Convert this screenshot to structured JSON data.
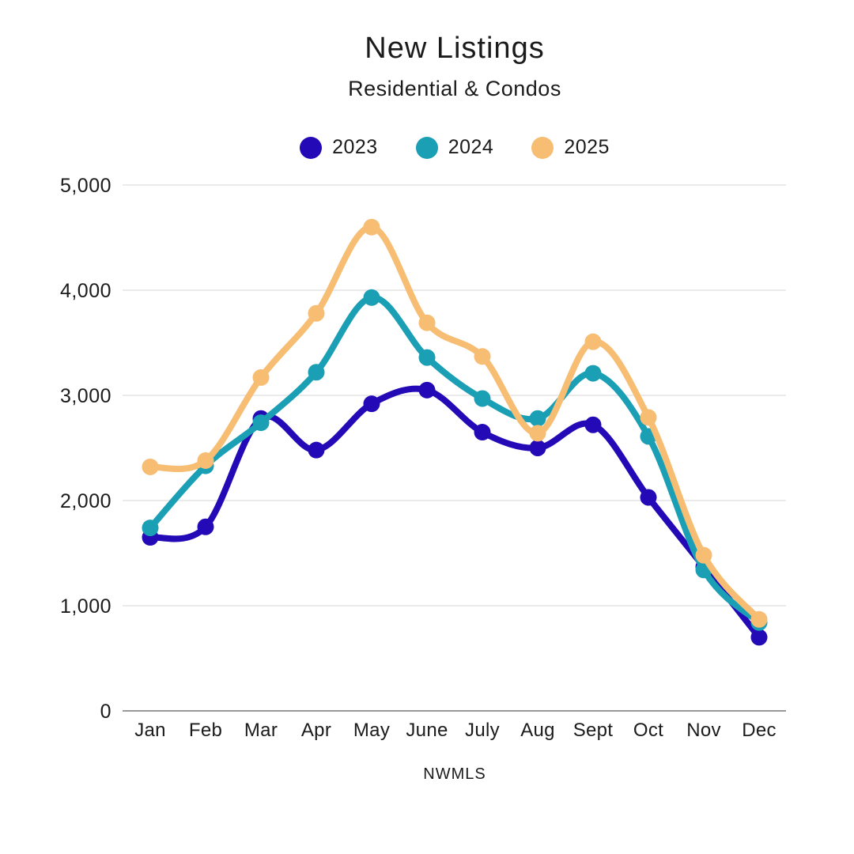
{
  "header": {
    "title": "New Listings",
    "subtitle": "Residential & Condos"
  },
  "footer": {
    "source": "NWMLS"
  },
  "chart_data": {
    "type": "line",
    "title": "New Listings",
    "subtitle": "Residential & Condos",
    "xlabel": "NWMLS",
    "ylabel": "",
    "categories": [
      "Jan",
      "Feb",
      "Mar",
      "Apr",
      "May",
      "June",
      "July",
      "Aug",
      "Sept",
      "Oct",
      "Nov",
      "Dec"
    ],
    "series": [
      {
        "name": "2023",
        "color": "#240ab7",
        "values": [
          1650,
          1750,
          2780,
          2480,
          2920,
          3050,
          2650,
          2500,
          2720,
          2030,
          1370,
          700
        ]
      },
      {
        "name": "2024",
        "color": "#1a9fb4",
        "values": [
          1740,
          2330,
          2740,
          3220,
          3930,
          3360,
          2970,
          2780,
          3210,
          2610,
          1340,
          840
        ]
      },
      {
        "name": "2025",
        "color": "#f6bd73",
        "values": [
          2320,
          2380,
          3170,
          3780,
          4600,
          3690,
          3370,
          2640,
          3510,
          2790,
          1480,
          870
        ]
      }
    ],
    "ylim": [
      0,
      5000
    ],
    "yticks": [
      0,
      1000,
      2000,
      3000,
      4000,
      5000
    ],
    "ytick_labels": [
      "0",
      "1,000",
      "2,000",
      "3,000",
      "4,000",
      "5,000"
    ],
    "grid": "horizontal",
    "legend_position": "top",
    "colors": {
      "grid": "#e4e4e4",
      "axis": "#999999",
      "text": "#1b1b1b",
      "background": "#ffffff"
    }
  }
}
